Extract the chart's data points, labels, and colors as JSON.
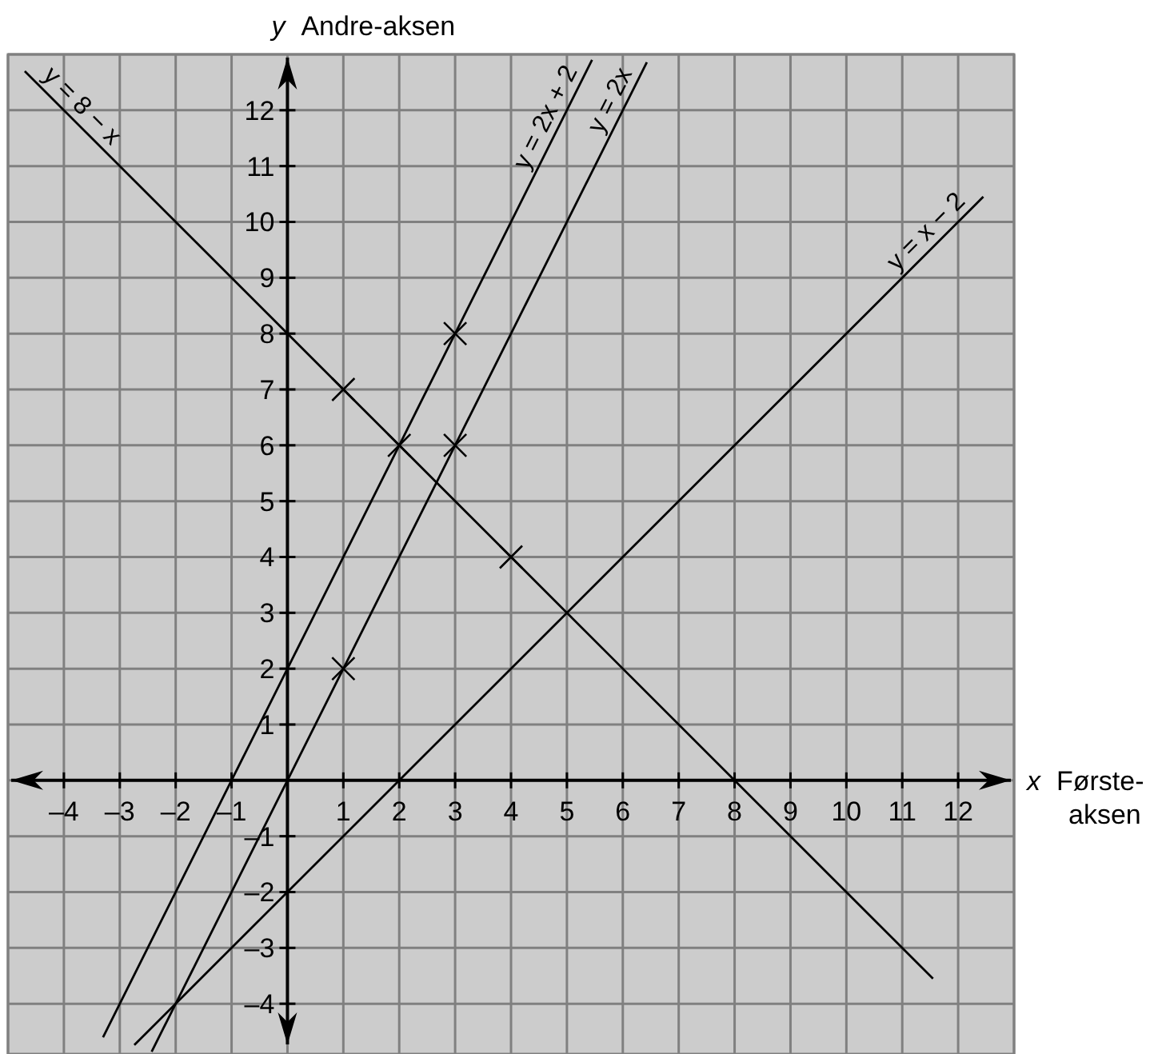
{
  "chart_data": {
    "type": "line",
    "xlabel": "x Første-aksen",
    "ylabel": "y Andre-aksen",
    "xlim": [
      -5,
      13
    ],
    "ylim": [
      -4.9,
      13
    ],
    "xticks": [
      {
        "value": -4,
        "label": "–4"
      },
      {
        "value": -3,
        "label": "–3"
      },
      {
        "value": -2,
        "label": "–2"
      },
      {
        "value": -1,
        "label": "–1"
      },
      1,
      2,
      3,
      4,
      5,
      6,
      7,
      8,
      9,
      10,
      11,
      12
    ],
    "yticks": [
      {
        "value": -4,
        "label": "–4"
      },
      {
        "value": -3,
        "label": "–3"
      },
      {
        "value": -2,
        "label": "–2"
      },
      {
        "value": -1,
        "label": "–1"
      },
      1,
      2,
      3,
      4,
      5,
      6,
      7,
      8,
      9,
      10,
      11,
      12
    ],
    "grid": true,
    "marker": "none",
    "line_style": "solid",
    "series": [
      {
        "name": "y = 8 − x",
        "color": "#000000",
        "x": [
          -4.7,
          11.55
        ],
        "values": [
          12.7,
          -3.55
        ]
      },
      {
        "name": "y = 2x + 2",
        "color": "#000000",
        "x": [
          -3.3,
          5.45
        ],
        "values": [
          -4.6,
          12.9
        ]
      },
      {
        "name": "y = 2x",
        "color": "#000000",
        "x": [
          -2.43,
          6.43
        ],
        "values": [
          -4.86,
          12.86
        ]
      },
      {
        "name": "y = x − 2",
        "color": "#000000",
        "x": [
          -2.74,
          12.45
        ],
        "values": [
          -4.74,
          10.45
        ]
      },
      {
        "type": "scatter",
        "color": "#000000",
        "marker": "cross",
        "x": [
          1,
          2,
          4,
          3,
          1,
          3
        ],
        "values": [
          7,
          6,
          4,
          8,
          2,
          6
        ]
      }
    ]
  }
}
